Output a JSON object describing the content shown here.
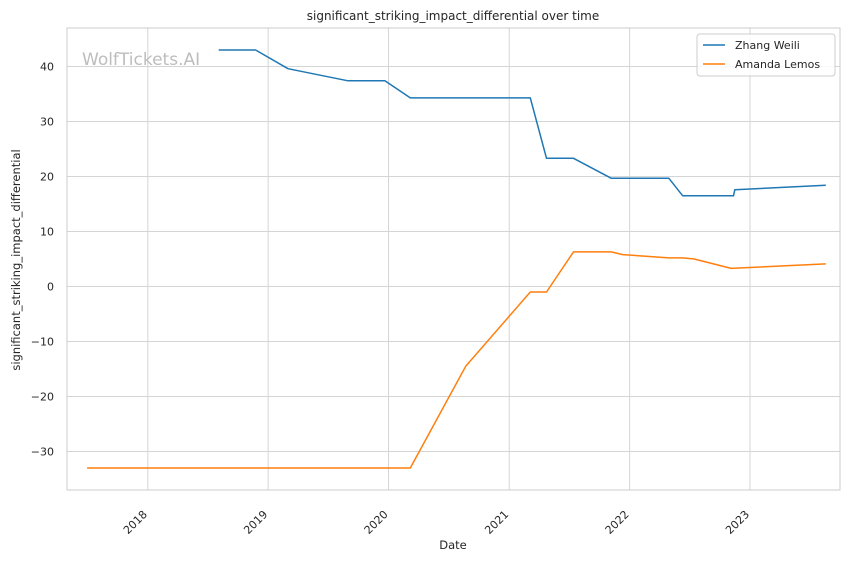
{
  "chart_data": {
    "type": "line",
    "title": "significant_striking_impact_differential over time",
    "xlabel": "Date",
    "ylabel": "significant_striking_impact_differential",
    "watermark": "WolfTickets.AI",
    "xlim": [
      "2017-05-01",
      "2023-10-01"
    ],
    "ylim": [
      -37,
      47
    ],
    "x_ticks": [
      "2018-01-01",
      "2019-01-01",
      "2020-01-01",
      "2021-01-01",
      "2022-01-01",
      "2023-01-01"
    ],
    "x_tick_labels": [
      "2018",
      "2019",
      "2020",
      "2021",
      "2022",
      "2023"
    ],
    "y_ticks": [
      -30,
      -20,
      -10,
      0,
      10,
      20,
      30,
      40
    ],
    "y_tick_labels": [
      "−30",
      "−20",
      "−10",
      "0",
      "10",
      "20",
      "30",
      "40"
    ],
    "grid": true,
    "legend_position": "top-right",
    "series": [
      {
        "name": "Zhang Weili",
        "color": "#1f77b4",
        "points": [
          [
            "2018-08-04",
            43.0
          ],
          [
            "2018-11-24",
            43.0
          ],
          [
            "2019-03-02",
            39.6
          ],
          [
            "2019-08-31",
            37.4
          ],
          [
            "2019-12-21",
            37.4
          ],
          [
            "2020-03-07",
            34.3
          ],
          [
            "2021-03-06",
            34.3
          ],
          [
            "2021-04-24",
            23.3
          ],
          [
            "2021-07-15",
            23.3
          ],
          [
            "2021-11-06",
            19.7
          ],
          [
            "2022-04-30",
            19.7
          ],
          [
            "2022-06-11",
            16.5
          ],
          [
            "2022-11-12",
            16.5
          ],
          [
            "2022-11-16",
            17.6
          ],
          [
            "2023-08-19",
            18.4
          ]
        ]
      },
      {
        "name": "Amanda Lemos",
        "color": "#ff7f0e",
        "points": [
          [
            "2017-07-01",
            -33.0
          ],
          [
            "2020-03-07",
            -33.0
          ],
          [
            "2020-08-22",
            -14.5
          ],
          [
            "2021-03-06",
            -1.0
          ],
          [
            "2021-04-24",
            -1.0
          ],
          [
            "2021-07-15",
            6.3
          ],
          [
            "2021-11-06",
            6.3
          ],
          [
            "2021-12-11",
            5.8
          ],
          [
            "2022-04-30",
            5.2
          ],
          [
            "2022-06-11",
            5.2
          ],
          [
            "2022-07-16",
            5.0
          ],
          [
            "2022-11-05",
            3.3
          ],
          [
            "2023-08-19",
            4.1
          ]
        ]
      }
    ]
  }
}
